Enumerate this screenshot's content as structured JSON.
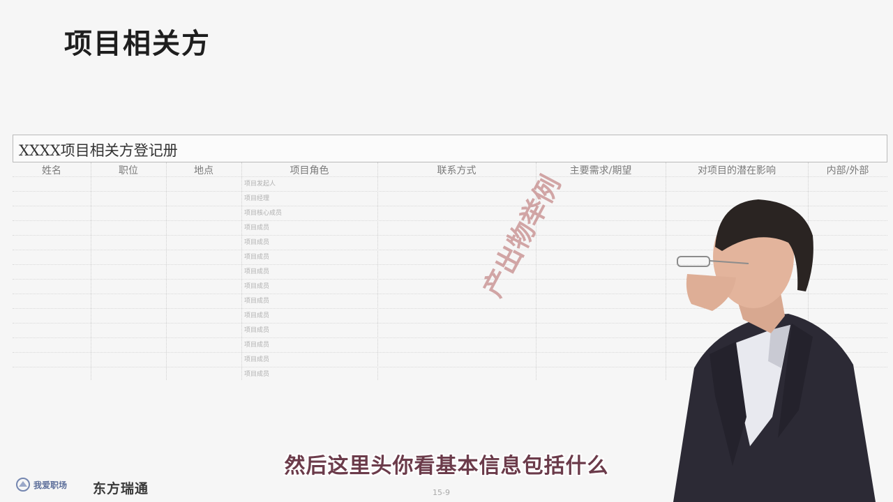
{
  "slide": {
    "title": "项目相关方"
  },
  "register": {
    "title": "XXXX项目相关方登记册",
    "columns": [
      "姓名",
      "职位",
      "地点",
      "项目角色",
      "联系方式",
      "主要需求/期望",
      "对项目的潜在影响",
      "内部/外部"
    ],
    "roles": [
      "项目发起人",
      "项目经理",
      "项目核心成员",
      "项目成员",
      "项目成员",
      "项目成员",
      "项目成员",
      "项目成员",
      "项目成员",
      "项目成员",
      "项目成员",
      "项目成员",
      "项目成员",
      "项目成员"
    ]
  },
  "watermark": "产出物举例",
  "subtitle": "然后这里头你看基本信息包括什么",
  "footer": {
    "page_number": "15-9",
    "logo_left_text": "我爱职场",
    "logo_right_text": "东方瑞通"
  }
}
